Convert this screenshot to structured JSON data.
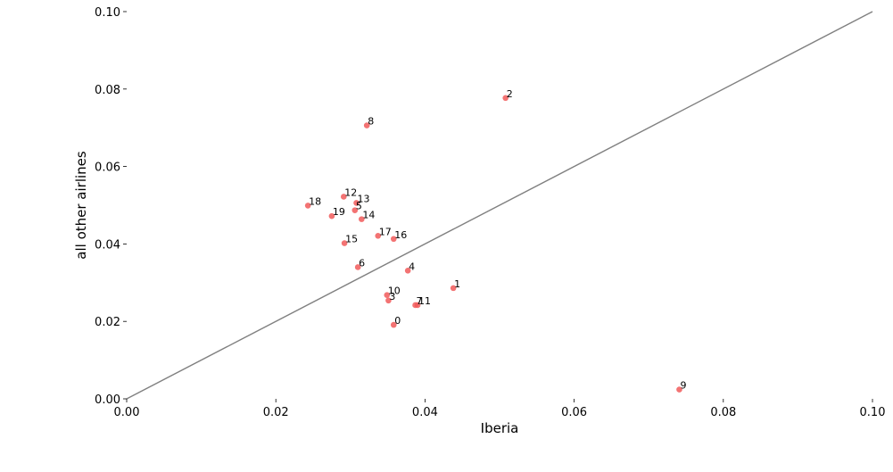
{
  "chart_data": {
    "type": "scatter",
    "xlabel": "Iberia",
    "ylabel": "all other airlines",
    "xlim": [
      0.0,
      0.1
    ],
    "ylim": [
      0.0,
      0.1
    ],
    "x_ticks": [
      0.0,
      0.02,
      0.04,
      0.06,
      0.08,
      0.1
    ],
    "y_ticks": [
      0.0,
      0.02,
      0.04,
      0.06,
      0.08,
      0.1
    ],
    "x_tick_labels": [
      "0.00",
      "0.02",
      "0.04",
      "0.06",
      "0.08",
      "0.10"
    ],
    "y_tick_labels": [
      "0.00",
      "0.02",
      "0.04",
      "0.06",
      "0.08",
      "0.10"
    ],
    "grid": false,
    "reference_line": {
      "from": [
        0.0,
        0.0
      ],
      "to": [
        0.1,
        0.1
      ],
      "color": "#808080"
    },
    "point_color": "#f15a5a",
    "points": [
      {
        "label": "0",
        "x": 0.0358,
        "y": 0.0191
      },
      {
        "label": "1",
        "x": 0.0438,
        "y": 0.0286
      },
      {
        "label": "2",
        "x": 0.0508,
        "y": 0.0777
      },
      {
        "label": "3",
        "x": 0.0351,
        "y": 0.0254
      },
      {
        "label": "4",
        "x": 0.0377,
        "y": 0.0331
      },
      {
        "label": "5",
        "x": 0.0306,
        "y": 0.0487
      },
      {
        "label": "6",
        "x": 0.031,
        "y": 0.034
      },
      {
        "label": "7",
        "x": 0.0387,
        "y": 0.0242
      },
      {
        "label": "8",
        "x": 0.0322,
        "y": 0.0706
      },
      {
        "label": "9",
        "x": 0.0741,
        "y": 0.0024
      },
      {
        "label": "10",
        "x": 0.0349,
        "y": 0.0268
      },
      {
        "label": "11",
        "x": 0.039,
        "y": 0.0242
      },
      {
        "label": "12",
        "x": 0.0291,
        "y": 0.0522
      },
      {
        "label": "13",
        "x": 0.0308,
        "y": 0.0506
      },
      {
        "label": "14",
        "x": 0.0315,
        "y": 0.0464
      },
      {
        "label": "15",
        "x": 0.0292,
        "y": 0.0402
      },
      {
        "label": "16",
        "x": 0.0358,
        "y": 0.0413
      },
      {
        "label": "17",
        "x": 0.0337,
        "y": 0.0421
      },
      {
        "label": "18",
        "x": 0.0243,
        "y": 0.0499
      },
      {
        "label": "19",
        "x": 0.0275,
        "y": 0.0472
      }
    ]
  }
}
